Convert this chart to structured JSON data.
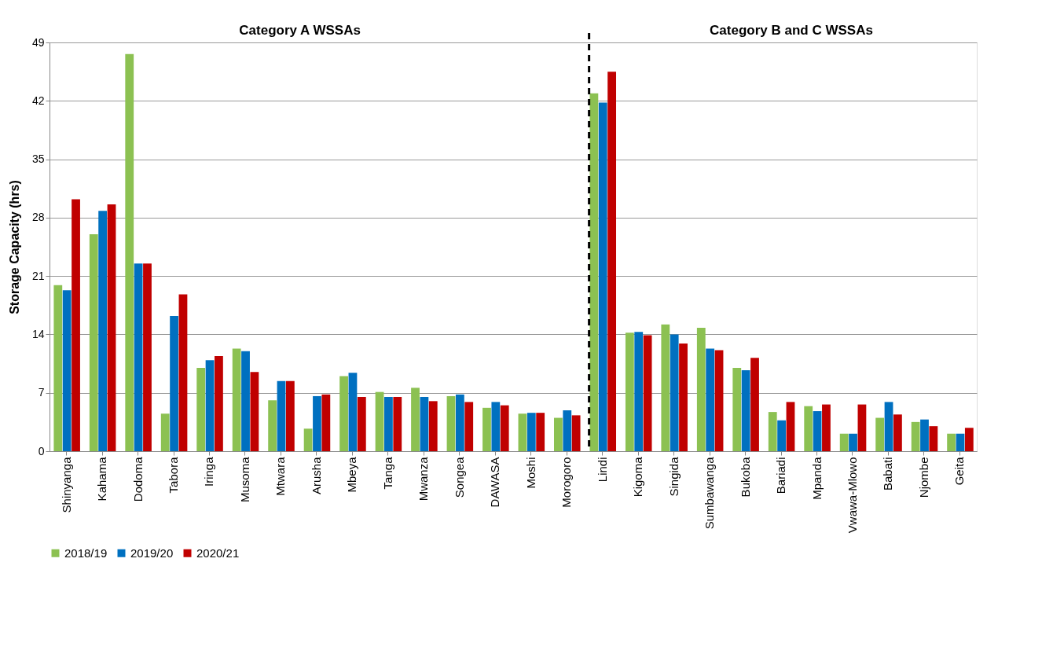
{
  "chart_data": {
    "type": "bar",
    "ylabel": "Storage Capacity (hrs)",
    "categories": [
      "Shinyanga",
      "Kahama",
      "Dodoma",
      "Tabora",
      "Iringa",
      "Musoma",
      "Mtwara",
      "Arusha",
      "Mbeya",
      "Tanga",
      "Mwanza",
      "Songea",
      "DAWASA",
      "Moshi",
      "Morogoro",
      "Lindi",
      "Kigoma",
      "Singida",
      "Sumbawanga",
      "Bukoba",
      "Bariadi",
      "Mpanda",
      "Vwawa-Mlowo",
      "Babati",
      "Njombe",
      "Geita"
    ],
    "series": [
      {
        "name": "2018/19",
        "color": "#8cc152",
        "values": [
          19.9,
          26.0,
          47.6,
          4.5,
          10.0,
          12.3,
          6.1,
          2.7,
          9.0,
          7.1,
          7.6,
          6.6,
          5.2,
          4.5,
          4.0,
          42.9,
          14.2,
          15.2,
          14.8,
          10.0,
          4.7,
          5.4,
          2.1,
          4.0,
          3.5,
          2.1
        ]
      },
      {
        "name": "2019/20",
        "color": "#0070c0",
        "values": [
          19.3,
          28.8,
          22.5,
          16.2,
          10.9,
          12.0,
          8.4,
          6.6,
          9.4,
          6.5,
          6.5,
          6.8,
          5.9,
          4.6,
          4.9,
          41.8,
          14.3,
          14.0,
          12.3,
          9.7,
          3.7,
          4.8,
          2.1,
          5.9,
          3.8,
          2.1
        ]
      },
      {
        "name": "2020/21",
        "color": "#c00000",
        "values": [
          30.2,
          29.6,
          22.5,
          18.8,
          11.4,
          9.5,
          8.4,
          6.8,
          6.5,
          6.5,
          6.0,
          5.9,
          5.5,
          4.6,
          4.3,
          45.5,
          13.9,
          12.9,
          12.1,
          11.2,
          5.9,
          5.6,
          5.6,
          4.4,
          3.0,
          2.8
        ]
      }
    ],
    "ylim": [
      0,
      49
    ],
    "yticks": [
      0,
      7,
      14,
      21,
      28,
      35,
      42,
      49
    ],
    "grid": "y",
    "legend": "bottom",
    "ref_lines": [
      {
        "axis": "x",
        "value": "Lindi",
        "line_style": "dashed",
        "color": "#000000"
      }
    ],
    "annotations": [
      "Category  A WSSAs",
      "Category B and C WSSAs"
    ]
  }
}
